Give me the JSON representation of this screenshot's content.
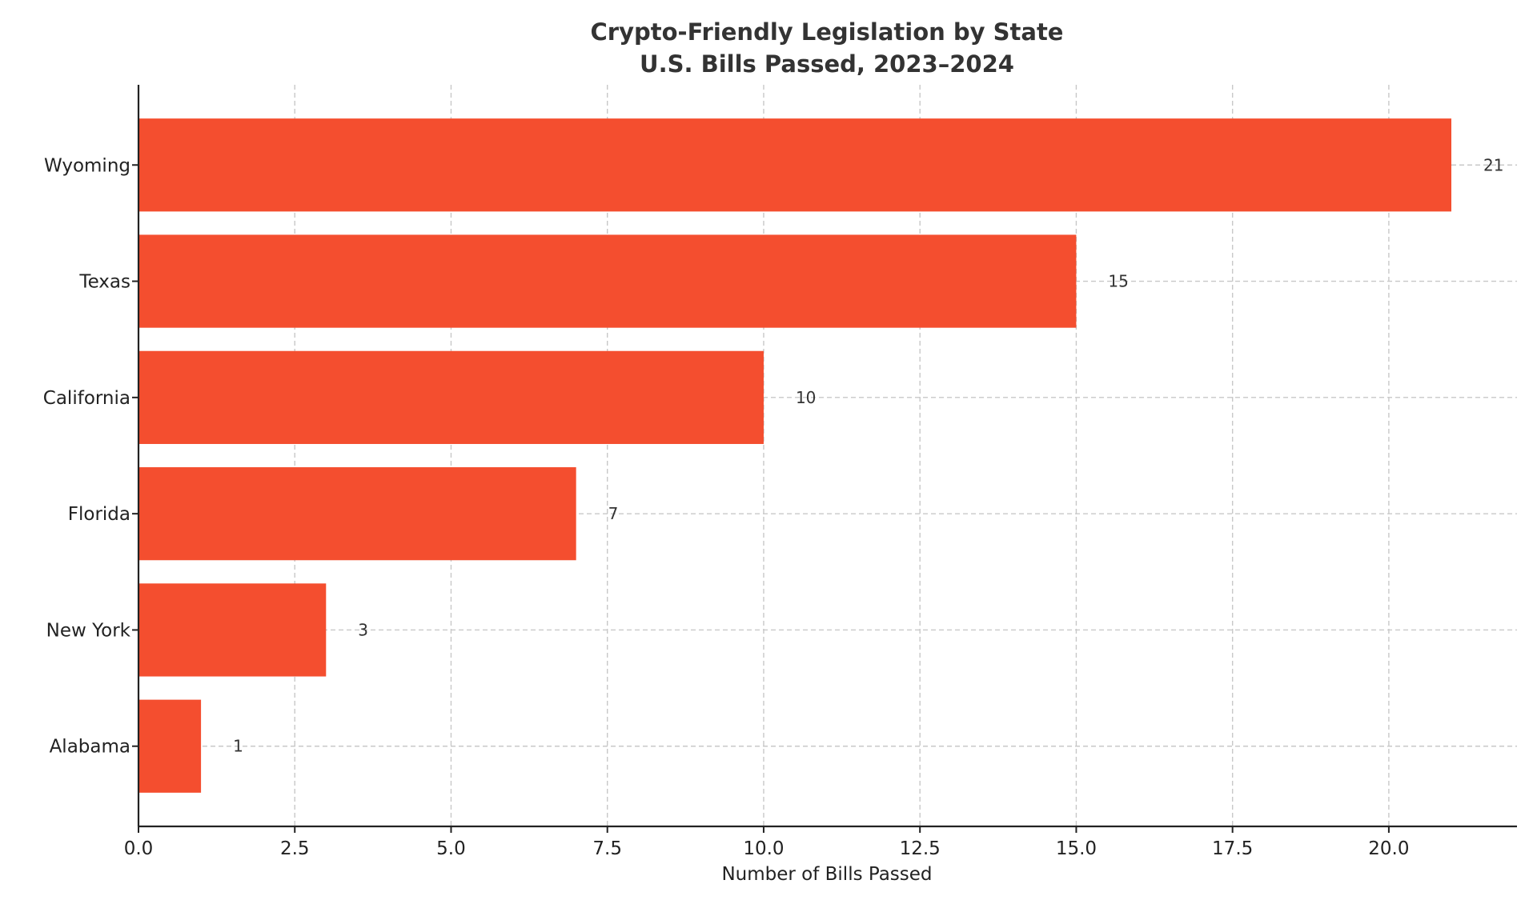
{
  "chart_data": {
    "type": "bar",
    "orientation": "horizontal",
    "title": "Crypto-Friendly Legislation by State",
    "subtitle": "U.S. Bills Passed, 2023–2024",
    "xlabel": "Number of Bills Passed",
    "ylabel": "",
    "categories": [
      "Wyoming",
      "Texas",
      "California",
      "Florida",
      "New York",
      "Alabama"
    ],
    "values": [
      21,
      15,
      10,
      7,
      3,
      1
    ],
    "xlim": [
      0,
      22.05
    ],
    "xticks": [
      "0.0",
      "2.5",
      "5.0",
      "7.5",
      "10.0",
      "12.5",
      "15.0",
      "17.5",
      "20.0"
    ],
    "grid": true,
    "bar_color": "#F44E2F"
  }
}
